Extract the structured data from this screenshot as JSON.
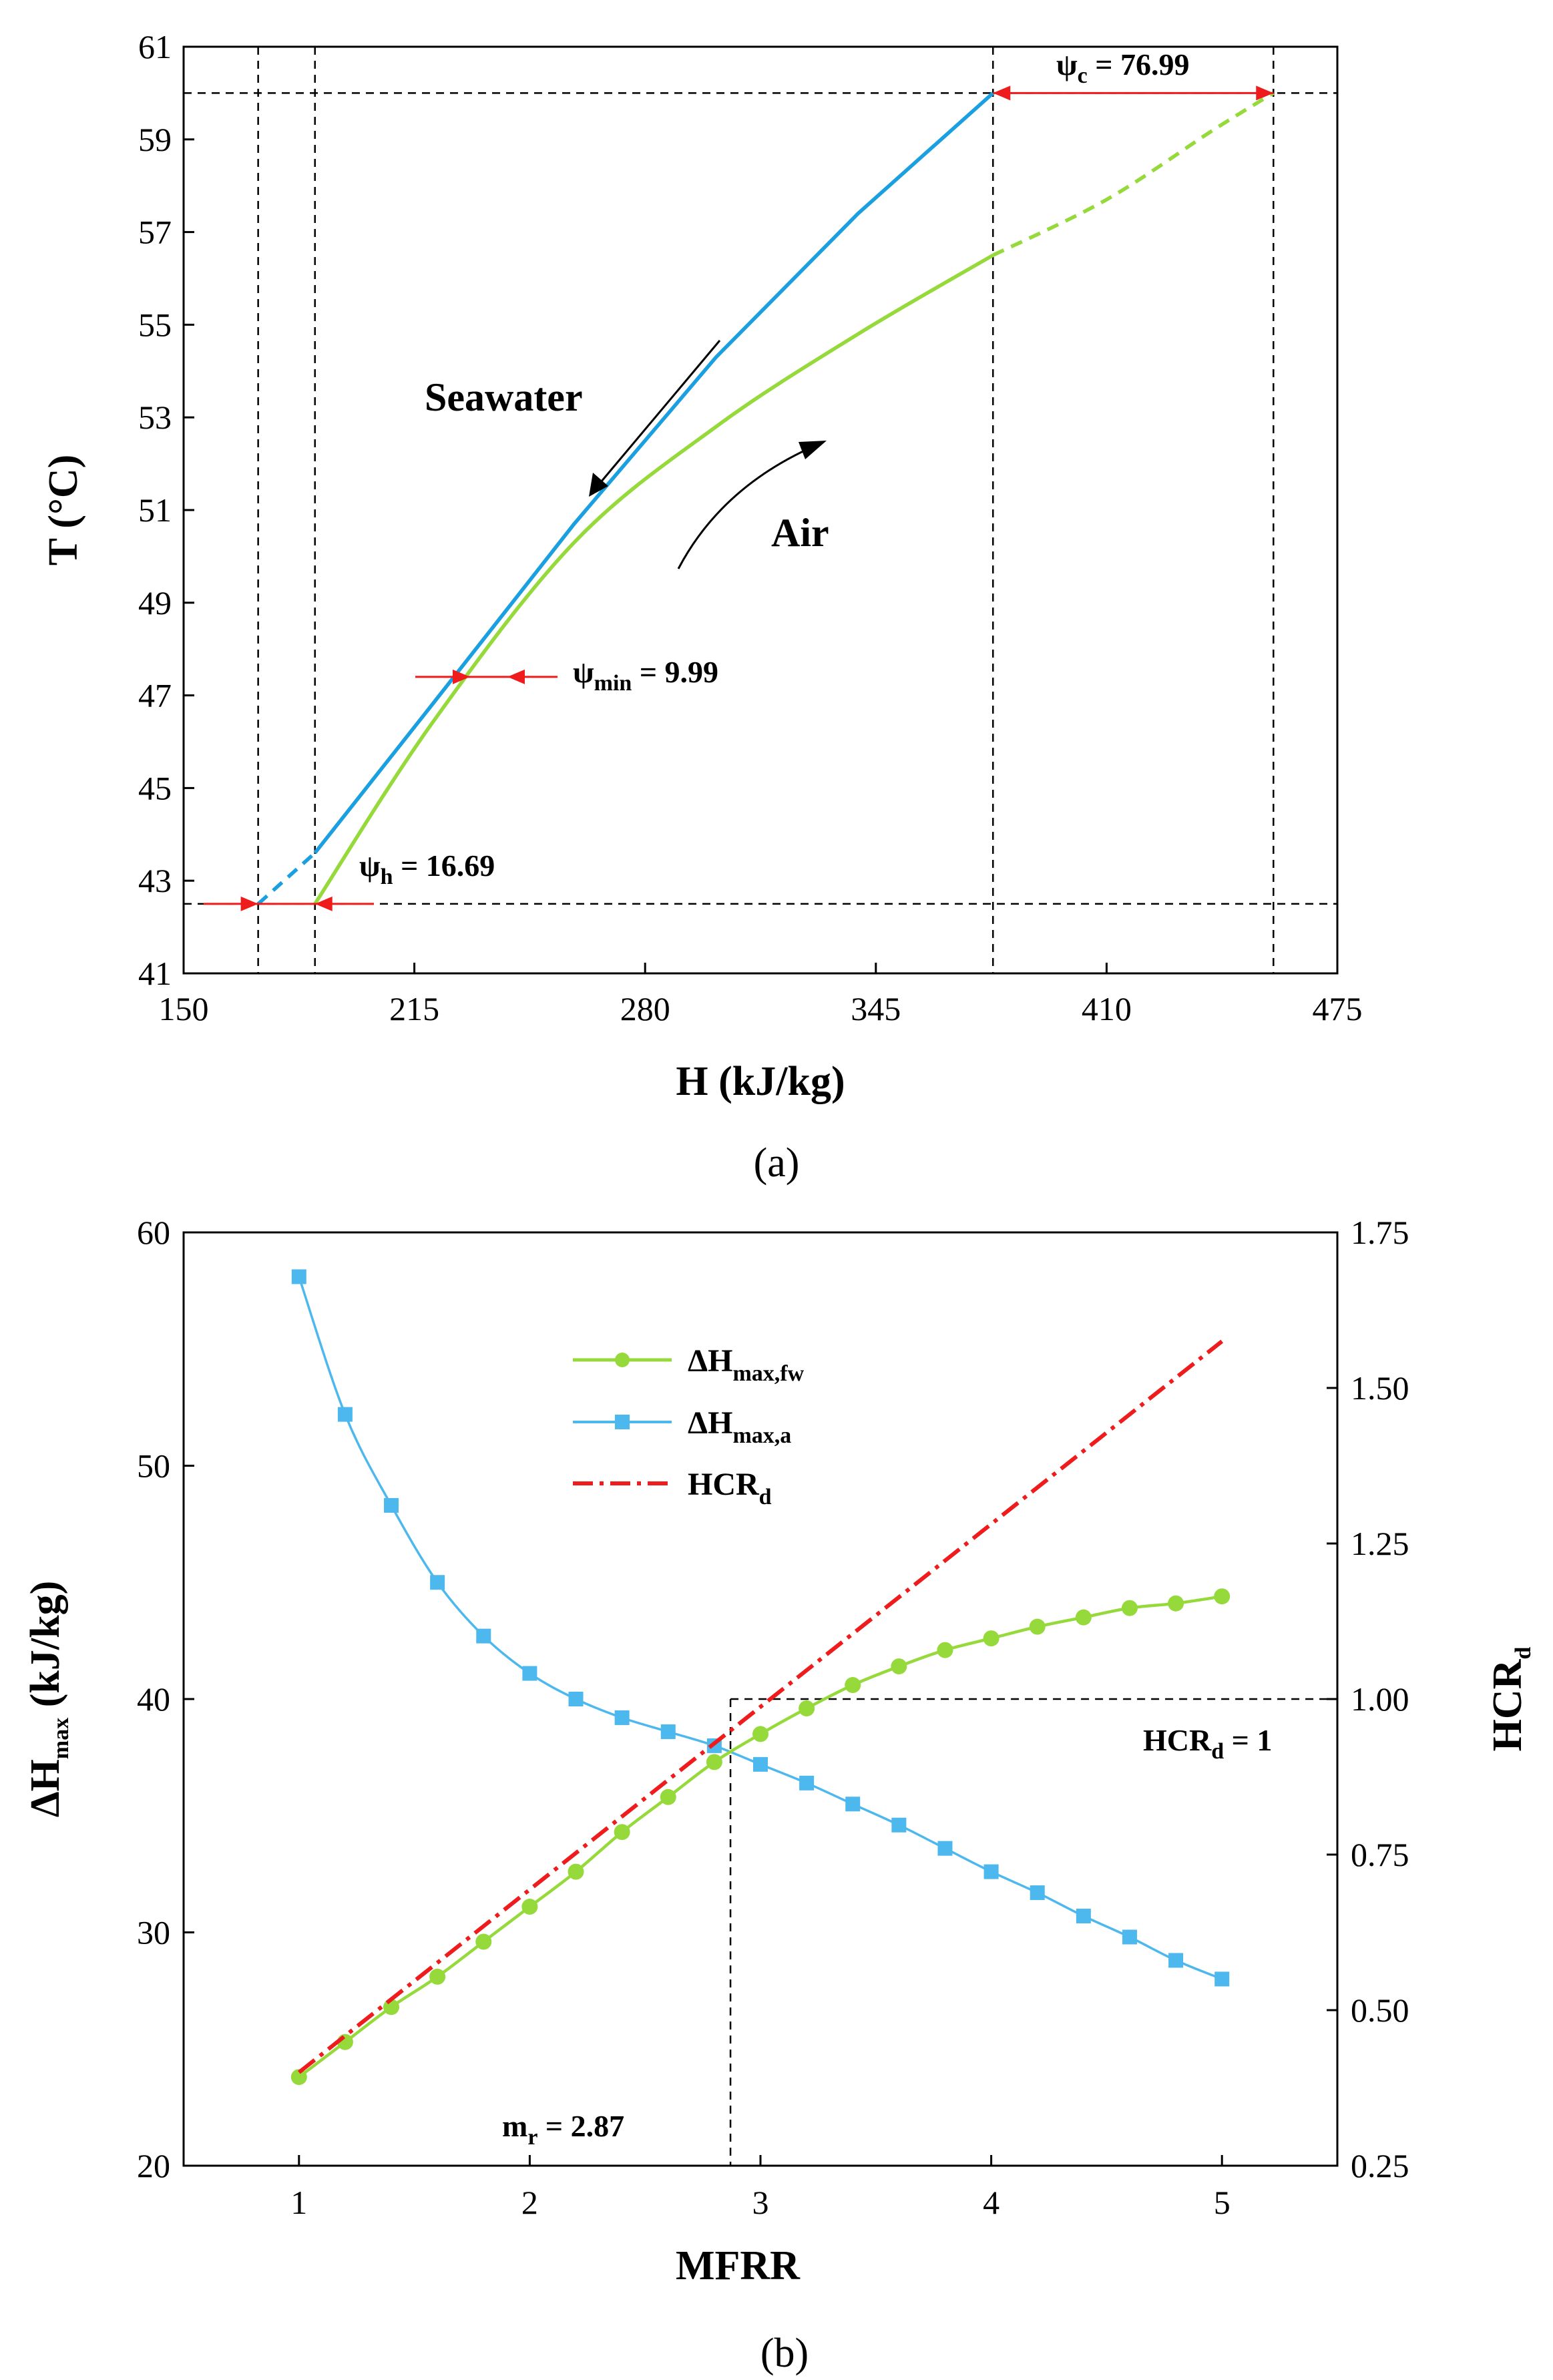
{
  "colors": {
    "seawater": "#1a9fe0",
    "air": "#96d93a",
    "fw_series": "#96d93a",
    "a_series": "#4db8ee",
    "hcr": "#ee1c1c",
    "annotation_arrow": "#ee1c1c"
  },
  "chart_data": [
    {
      "type": "line",
      "panel_label": "(a)",
      "xlabel": "H (kJ/kg)",
      "ylabel": "T (°C)",
      "xlim": [
        150,
        475
      ],
      "ylim": [
        41,
        61
      ],
      "xticks": [
        150,
        215,
        280,
        345,
        410,
        475
      ],
      "yticks": [
        41,
        43,
        45,
        47,
        49,
        51,
        53,
        55,
        57,
        59,
        61
      ],
      "series": [
        {
          "name": "Seawater",
          "solid": [
            [
              187,
              43.6
            ],
            [
              220,
              46.8
            ],
            [
              260,
              50.7
            ],
            [
              300,
              54.3
            ],
            [
              340,
              57.4
            ],
            [
              378,
              60
            ]
          ],
          "dashed": [
            [
              171,
              42.5
            ],
            [
              187,
              43.6
            ]
          ]
        },
        {
          "name": "Air",
          "solid": [
            [
              187,
              42.5
            ],
            [
              220,
              46.4
            ],
            [
              260,
              50.3
            ],
            [
              300,
              52.8
            ],
            [
              340,
              54.8
            ],
            [
              378,
              56.5
            ]
          ],
          "dashed": [
            [
              378,
              56.5
            ],
            [
              410,
              57.7
            ],
            [
              440,
              59.2
            ],
            [
              457,
              60
            ]
          ]
        }
      ],
      "reference_lines": {
        "vertical": [
          171,
          187,
          378,
          457
        ],
        "horizontal": [
          60,
          42.5
        ]
      },
      "annotations": {
        "seawater": "Seawater",
        "air": "Air",
        "psi_c_sym": "ψ",
        "psi_c_sub": "c",
        "psi_c_val": " = 76.99",
        "psi_min_sym": "ψ",
        "psi_min_sub": "min",
        "psi_min_val": " = 9.99",
        "psi_h_sym": "ψ",
        "psi_h_sub": "h",
        "psi_h_val": " = 16.69"
      }
    },
    {
      "type": "line",
      "panel_label": "(b)",
      "xlabel": "MFRR",
      "ylabel_left_main": "ΔH",
      "ylabel_left_sub": "max",
      "ylabel_left_unit": " (kJ/kg)",
      "ylabel_right_main": "HCR",
      "ylabel_right_sub": "d",
      "xlim": [
        0.5,
        5.5
      ],
      "ylim_left": [
        20,
        60
      ],
      "ylim_right": [
        0.25,
        1.75
      ],
      "xticks": [
        1,
        2,
        3,
        4,
        5
      ],
      "yticks_left": [
        20,
        30,
        40,
        50,
        60
      ],
      "yticks_right": [
        "0.25",
        "0.50",
        "0.75",
        "1.00",
        "1.25",
        "1.50",
        "1.75"
      ],
      "x": [
        1.0,
        1.2,
        1.4,
        1.6,
        1.8,
        2.0,
        2.2,
        2.4,
        2.6,
        2.8,
        3.0,
        3.2,
        3.4,
        3.6,
        3.8,
        4.0,
        4.2,
        4.4,
        4.6,
        4.8,
        5.0
      ],
      "series": [
        {
          "name_main": "ΔH",
          "name_sub": "max,fw",
          "axis": "left",
          "marker": "circle",
          "values": [
            23.8,
            25.3,
            26.8,
            28.1,
            29.6,
            31.1,
            32.6,
            34.3,
            35.8,
            37.3,
            38.5,
            39.6,
            40.6,
            41.4,
            42.1,
            42.6,
            43.1,
            43.5,
            43.9,
            44.1,
            44.4
          ]
        },
        {
          "name_main": "ΔH",
          "name_sub": "max,a",
          "axis": "left",
          "marker": "square",
          "values": [
            58.1,
            52.2,
            48.3,
            45.0,
            42.7,
            41.1,
            40.0,
            39.2,
            38.6,
            38.0,
            37.2,
            36.4,
            35.5,
            34.6,
            33.6,
            32.6,
            31.7,
            30.7,
            29.8,
            28.8,
            28.0
          ]
        },
        {
          "name_main": "HCR",
          "name_sub": "d",
          "axis": "right",
          "style": "dash-dot",
          "x": [
            1.0,
            5.0
          ],
          "values": [
            0.4,
            1.575
          ]
        }
      ],
      "annotations": {
        "hcr_main": "HCR",
        "hcr_sub": "d",
        "hcr_val": " = 1",
        "mr_main": "m",
        "mr_sub": "r",
        "mr_val": " = 2.87",
        "mr_x": 2.87,
        "hcr_one": 1.0
      }
    }
  ]
}
